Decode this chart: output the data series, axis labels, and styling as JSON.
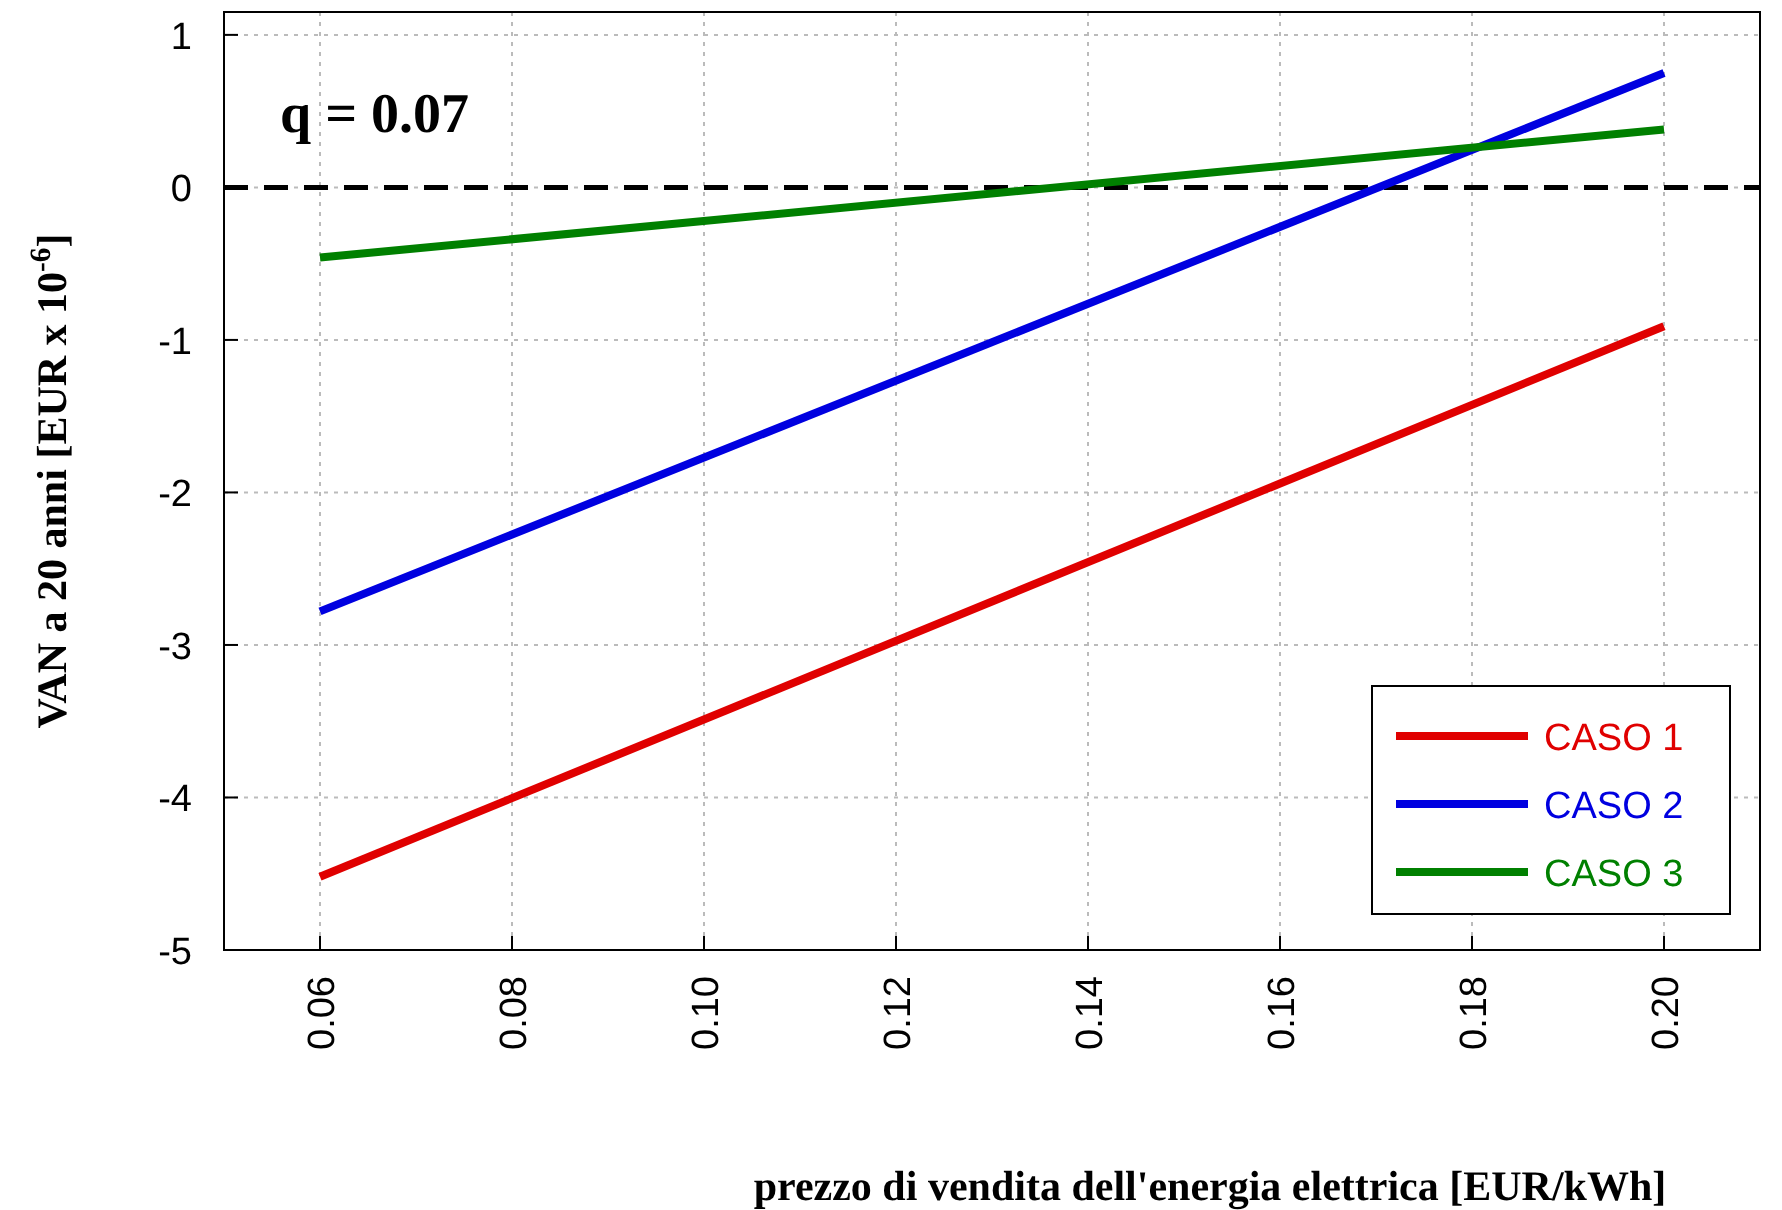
{
  "chart_data": {
    "type": "line",
    "xlabel": "prezzo di vendita dell'energia elettrica [EUR/kWh]",
    "ylabel": "VAN a 20 anni [EUR x 10$^{-6}$]",
    "annotations": [
      "q = 0.07"
    ],
    "x": [
      0.06,
      0.2
    ],
    "series": [
      {
        "name": "CASO 1",
        "color": "#e00000",
        "values": [
          -4.52,
          -0.91
        ]
      },
      {
        "name": "CASO 2",
        "color": "#0000e0",
        "values": [
          -2.78,
          0.75
        ]
      },
      {
        "name": "CASO 3",
        "color": "#008000",
        "values": [
          -0.46,
          0.38
        ]
      }
    ],
    "xlim": [
      0.05,
      0.21
    ],
    "xticks": [
      {
        "value": 0.06,
        "label": "0.06"
      },
      {
        "value": 0.08,
        "label": "0.08"
      },
      {
        "value": 0.1,
        "label": "0.10"
      },
      {
        "value": 0.12,
        "label": "0.12"
      },
      {
        "value": 0.14,
        "label": "0.14"
      },
      {
        "value": 0.16,
        "label": "0.16"
      },
      {
        "value": 0.18,
        "label": "0.18"
      },
      {
        "value": 0.2,
        "label": "0.20"
      }
    ],
    "ylim": [
      -5,
      1.15
    ],
    "yticks": [
      -5,
      -4,
      -3,
      -2,
      -1,
      0,
      1
    ],
    "ref_lines": [
      {
        "axis": "y",
        "value": 0,
        "color": "#000000",
        "line_style": "dashed"
      }
    ],
    "grid": true,
    "legend": "bottom right",
    "line_style": "solid",
    "marker": "none"
  }
}
